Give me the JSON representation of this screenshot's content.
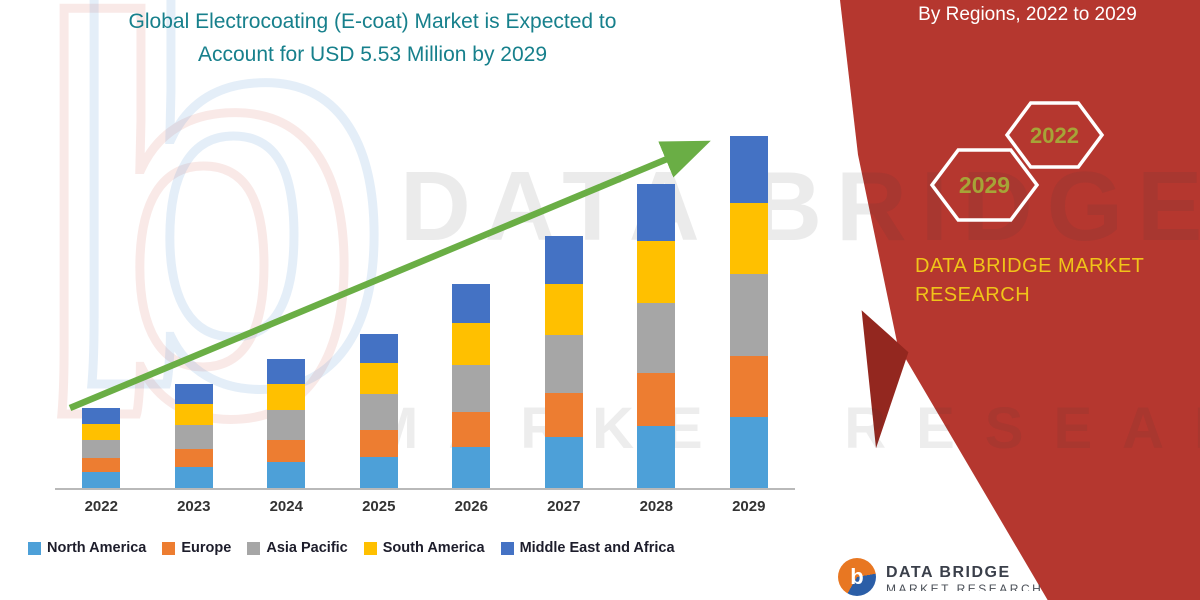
{
  "title": {
    "line1": "Global Electrocoating (E-coat) Market is Expected to",
    "line2": "Account for USD 5.53 Million by 2029"
  },
  "right_panel": {
    "heading": "By Regions, 2022 to 2029",
    "hex_back_year": "2029",
    "hex_front_year": "2022",
    "brand_line1": "DATA BRIDGE MARKET",
    "brand_line2": "RESEARCH",
    "bg_color": "#b5372f",
    "accent_color": "#93271f",
    "brand_text_color": "#f0c419",
    "year_text_color": "#a6a437",
    "hex_outline_color": "#ffffff"
  },
  "watermark": {
    "line1": "DATA BRIDGE",
    "line2": "MARKET RESEARCH"
  },
  "footer": {
    "brand": "DATA BRIDGE",
    "sub": "MARKET RESEARCH",
    "logo_letter": "b"
  },
  "chart_data": {
    "type": "bar",
    "stacked": true,
    "title": "Global Electrocoating (E-coat) Market is Expected to Account for USD 5.53 Million by 2029",
    "unit": "USD Million",
    "categories": [
      "2022",
      "2023",
      "2024",
      "2025",
      "2026",
      "2027",
      "2028",
      "2029"
    ],
    "series": [
      {
        "name": "North America",
        "color": "#4da0d8",
        "values": [
          0.25,
          0.33,
          0.41,
          0.49,
          0.65,
          0.8,
          0.97,
          1.12
        ]
      },
      {
        "name": "Europe",
        "color": "#ed7d31",
        "values": [
          0.22,
          0.28,
          0.35,
          0.42,
          0.55,
          0.69,
          0.83,
          0.96
        ]
      },
      {
        "name": "Asia Pacific",
        "color": "#a6a6a6",
        "values": [
          0.29,
          0.38,
          0.47,
          0.56,
          0.74,
          0.92,
          1.11,
          1.28
        ]
      },
      {
        "name": "South America",
        "color": "#ffc000",
        "values": [
          0.25,
          0.33,
          0.41,
          0.49,
          0.65,
          0.8,
          0.97,
          1.12
        ]
      },
      {
        "name": "Middle East and Africa",
        "color": "#4472c4",
        "values": [
          0.24,
          0.31,
          0.39,
          0.46,
          0.61,
          0.75,
          0.9,
          1.05
        ]
      }
    ],
    "totals": [
      1.25,
      1.64,
      2.03,
      2.42,
      3.19,
      3.97,
      4.78,
      5.53
    ],
    "ylim": [
      0,
      5.6
    ],
    "grid": false,
    "legend_position": "bottom",
    "trend_arrow": true,
    "trend_arrow_color": "#6aae45"
  }
}
